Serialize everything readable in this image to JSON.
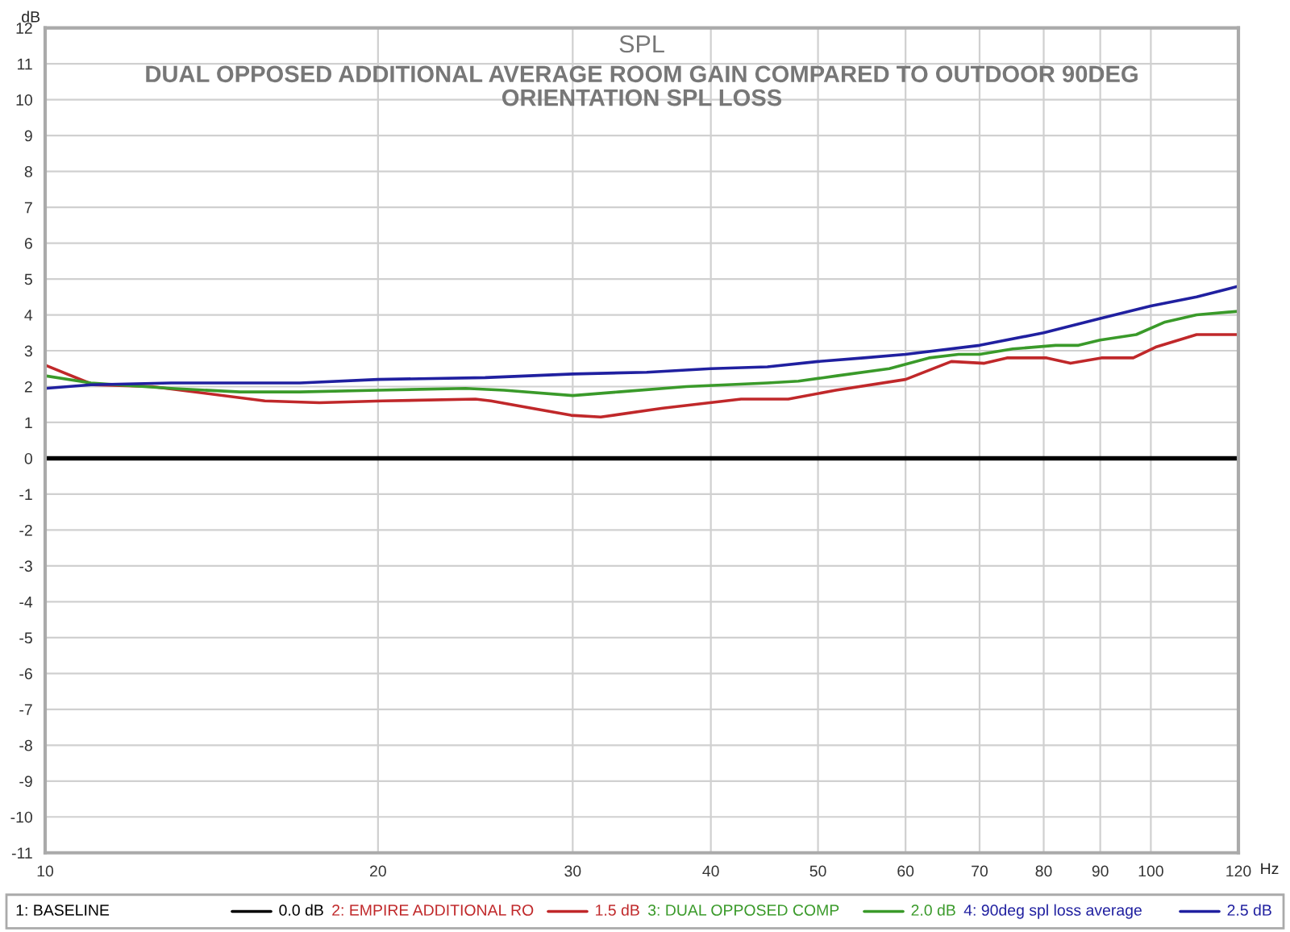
{
  "chart_data": {
    "type": "line",
    "title": "SPL",
    "subtitle": "DUAL OPPOSED ADDITIONAL AVERAGE ROOM GAIN COMPARED TO OUTDOOR 90DEG\nORIENTATION SPL LOSS",
    "xlabel": "Hz",
    "ylabel": "dB",
    "log": "x",
    "xlim": [
      10,
      120
    ],
    "xticks": [
      10,
      20,
      30,
      40,
      50,
      60,
      70,
      80,
      90,
      100,
      120
    ],
    "ylim": [
      -11,
      12
    ],
    "yticks": [
      -11,
      -10,
      -9,
      -8,
      -7,
      -6,
      -5,
      -4,
      -3,
      -2,
      -1,
      0,
      1,
      2,
      3,
      4,
      5,
      6,
      7,
      8,
      9,
      10,
      11,
      12
    ],
    "grid": true,
    "legend": "bottom",
    "marker": "none",
    "line_style": "solid",
    "annotations": [
      "0.0 dB",
      "1.5 dB",
      "2.0 dB",
      "2.5 dB"
    ],
    "series": [
      {
        "name": "1: BASELINE",
        "color": "#000000",
        "x": [
          10,
          120
        ],
        "values": [
          0,
          0
        ]
      },
      {
        "name": "2: EMPIRE ADDITIONAL RO",
        "color": "#c0282a",
        "x": [
          10,
          11.06,
          12.5,
          15.8,
          17.7,
          20.2,
          24.5,
          25.3,
          29.9,
          31.8,
          36.2,
          42.6,
          47,
          51.9,
          60,
          66,
          70.7,
          74.1,
          80.5,
          84.6,
          90.2,
          96.4,
          101,
          110,
          120
        ],
        "values": [
          2.6,
          2.05,
          2.0,
          1.6,
          1.55,
          1.6,
          1.65,
          1.6,
          1.2,
          1.15,
          1.4,
          1.65,
          1.65,
          1.9,
          2.2,
          2.7,
          2.65,
          2.8,
          2.8,
          2.65,
          2.8,
          2.8,
          3.1,
          3.45,
          3.45
        ]
      },
      {
        "name": "3: DUAL OPPOSED COMP",
        "color": "#3a9a2a",
        "x": [
          10,
          11,
          13,
          15,
          17,
          20,
          24,
          26,
          30,
          33,
          38,
          45,
          48,
          52,
          58,
          63,
          67,
          70,
          75,
          82,
          86,
          90,
          97,
          103,
          110,
          120
        ],
        "values": [
          2.3,
          2.1,
          1.95,
          1.85,
          1.85,
          1.9,
          1.95,
          1.9,
          1.75,
          1.85,
          2.0,
          2.1,
          2.15,
          2.3,
          2.5,
          2.8,
          2.9,
          2.9,
          3.05,
          3.15,
          3.15,
          3.3,
          3.45,
          3.8,
          4.0,
          4.1
        ]
      },
      {
        "name": "4: 90deg spl loss average",
        "color": "#2020a0",
        "x": [
          10,
          11,
          13,
          17,
          20,
          25,
          30,
          35,
          40,
          45,
          50,
          55,
          60,
          70,
          80,
          90,
          100,
          110,
          120
        ],
        "values": [
          1.95,
          2.05,
          2.1,
          2.1,
          2.2,
          2.25,
          2.35,
          2.4,
          2.5,
          2.55,
          2.7,
          2.8,
          2.9,
          3.15,
          3.5,
          3.9,
          4.25,
          4.5,
          4.8
        ]
      }
    ]
  }
}
